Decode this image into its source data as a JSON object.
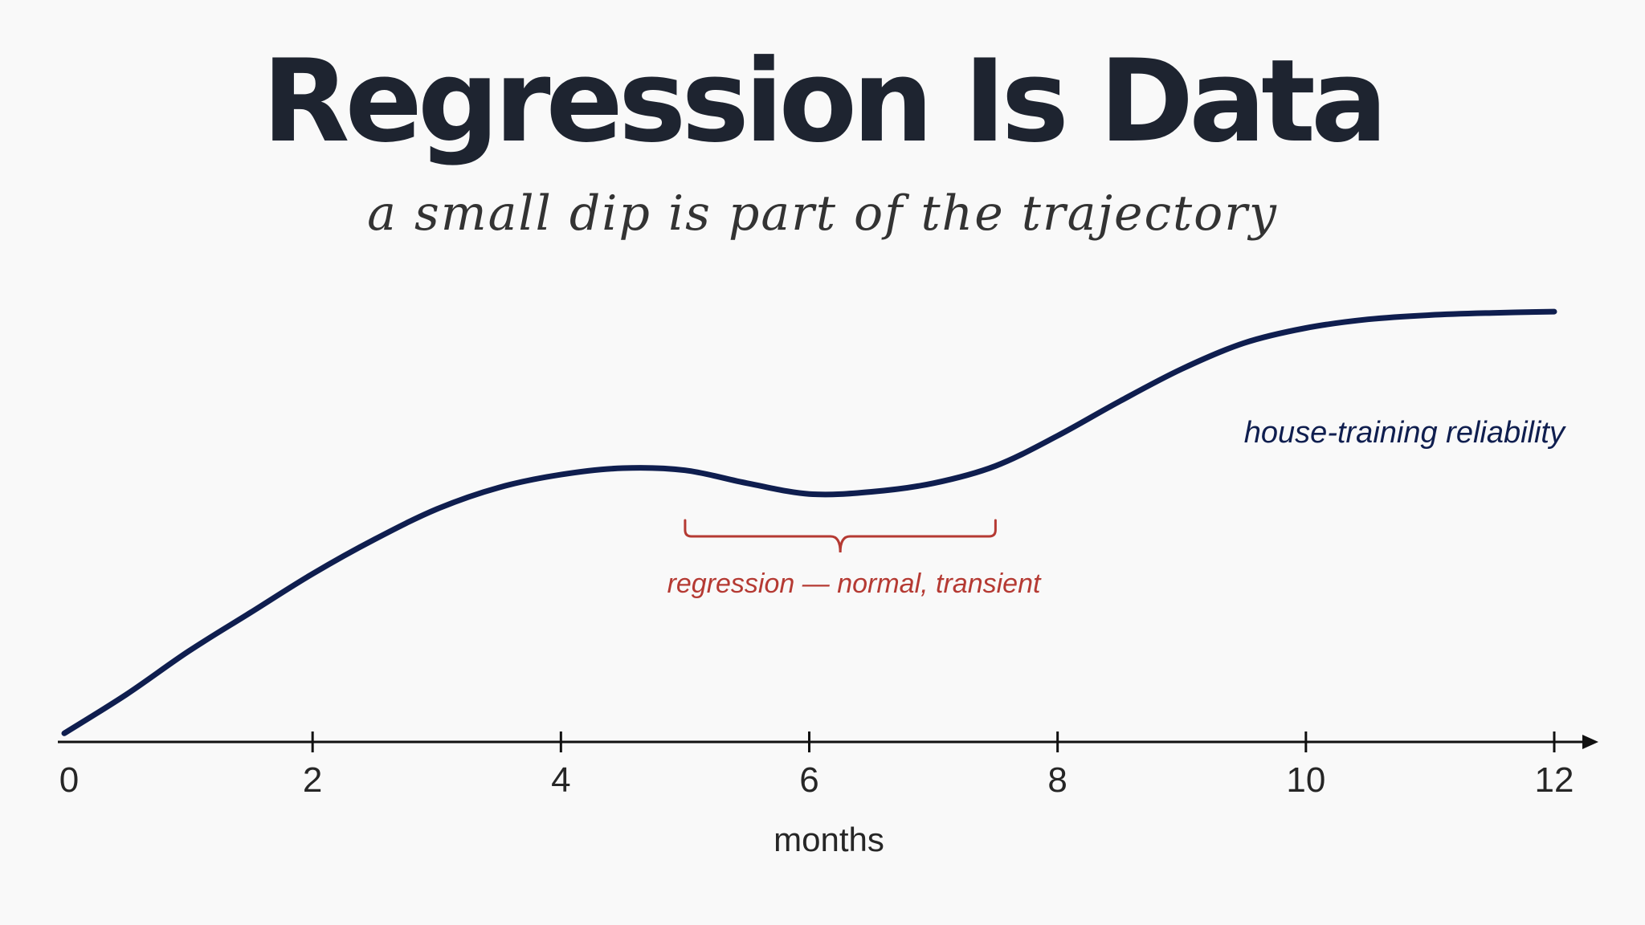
{
  "title": "Regression Is Data",
  "subtitle": "a small dip is part of the trajectory",
  "colors": {
    "line": "#0f1e4f",
    "annotation": "#b53a33",
    "axis": "#111111",
    "text": "#1e2430"
  },
  "chart_data": {
    "type": "line",
    "xlabel": "months",
    "ylabel": "",
    "xlim": [
      0,
      12.4
    ],
    "ylim": [
      0,
      1
    ],
    "x_ticks": [
      0,
      2,
      4,
      6,
      8,
      10,
      12
    ],
    "x_tick_labels": [
      "0",
      "2",
      "4",
      "6",
      "8",
      "10",
      12
    ],
    "grid": false,
    "series": [
      {
        "name": "house-training reliability",
        "x": [
          0,
          0.5,
          1,
          1.5,
          2,
          2.5,
          3,
          3.5,
          4,
          4.5,
          5,
          5.5,
          6,
          6.5,
          7,
          7.5,
          8,
          8.5,
          9,
          9.5,
          10,
          10.5,
          11,
          11.5,
          12
        ],
        "y": [
          0.02,
          0.11,
          0.21,
          0.3,
          0.39,
          0.47,
          0.54,
          0.59,
          0.62,
          0.635,
          0.63,
          0.6,
          0.575,
          0.58,
          0.6,
          0.64,
          0.71,
          0.79,
          0.865,
          0.925,
          0.96,
          0.98,
          0.99,
          0.995,
          0.998
        ]
      }
    ],
    "annotations": [
      {
        "text": "regression — normal, transient",
        "x_start": 5.0,
        "x_end": 7.5
      }
    ]
  }
}
